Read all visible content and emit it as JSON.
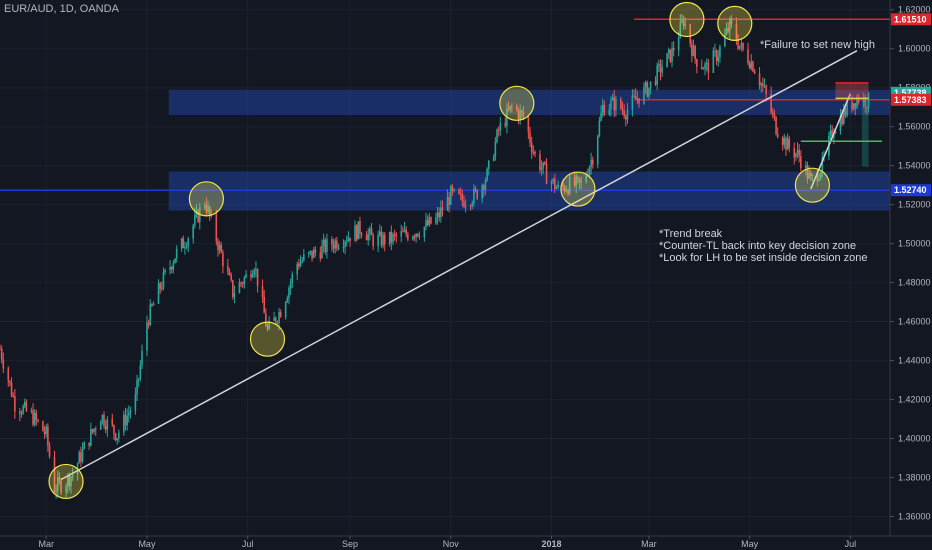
{
  "header": {
    "symbol_title": "EUR/AUD, 1D, OANDA"
  },
  "annotations": {
    "failure_note": "*Failure to set new high",
    "trend_notes": [
      "*Trend break",
      "*Counter-TL back into key decision zone",
      "*Look for LH to be set inside decision zone"
    ]
  },
  "colors": {
    "background": "#131722",
    "up_candle": "#26a69a",
    "down_candle": "#ef5350",
    "zone_fill": "#2962ff",
    "blue_line": "#1e3ad6",
    "red_line": "#e0242c",
    "trendline": "#d1d4dc",
    "highlight": "#f2e44a"
  },
  "chart_data": {
    "type": "candlestick",
    "title": "EUR/AUD, 1D, OANDA",
    "ylim": [
      1.35,
      1.625
    ],
    "y_ticks": [
      1.36,
      1.38,
      1.4,
      1.42,
      1.44,
      1.46,
      1.48,
      1.5,
      1.52,
      1.54,
      1.56,
      1.58,
      1.6,
      1.62
    ],
    "x_ticks": [
      "Mar",
      "May",
      "Jul",
      "Sep",
      "Nov",
      "2018",
      "Mar",
      "May",
      "Jul"
    ],
    "x_range": [
      "2017-02-01",
      "2018-07-25"
    ],
    "x_tick_dates": [
      "2017-03-01",
      "2017-05-01",
      "2017-07-01",
      "2017-09-01",
      "2017-11-01",
      "2018-01-01",
      "2018-03-01",
      "2018-05-01",
      "2018-07-01"
    ],
    "price_path": [
      [
        "2017-02-01",
        1.446
      ],
      [
        "2017-02-10",
        1.418
      ],
      [
        "2017-02-20",
        1.412
      ],
      [
        "2017-03-01",
        1.402
      ],
      [
        "2017-03-06",
        1.375
      ],
      [
        "2017-03-13",
        1.378
      ],
      [
        "2017-03-17",
        1.382
      ],
      [
        "2017-03-24",
        1.395
      ],
      [
        "2017-04-03",
        1.412
      ],
      [
        "2017-04-13",
        1.402
      ],
      [
        "2017-04-24",
        1.42
      ],
      [
        "2017-05-01",
        1.46
      ],
      [
        "2017-05-10",
        1.48
      ],
      [
        "2017-05-18",
        1.494
      ],
      [
        "2017-05-26",
        1.504
      ],
      [
        "2017-06-05",
        1.522
      ],
      [
        "2017-06-13",
        1.5
      ],
      [
        "2017-06-22",
        1.475
      ],
      [
        "2017-06-30",
        1.483
      ],
      [
        "2017-07-05",
        1.49
      ],
      [
        "2017-07-13",
        1.455
      ],
      [
        "2017-07-21",
        1.466
      ],
      [
        "2017-07-31",
        1.49
      ],
      [
        "2017-08-10",
        1.495
      ],
      [
        "2017-08-21",
        1.5
      ],
      [
        "2017-08-31",
        1.504
      ],
      [
        "2017-09-08",
        1.508
      ],
      [
        "2017-09-15",
        1.502
      ],
      [
        "2017-09-25",
        1.502
      ],
      [
        "2017-10-05",
        1.505
      ],
      [
        "2017-10-13",
        1.507
      ],
      [
        "2017-10-23",
        1.512
      ],
      [
        "2017-11-01",
        1.525
      ],
      [
        "2017-11-08",
        1.522
      ],
      [
        "2017-11-16",
        1.525
      ],
      [
        "2017-11-23",
        1.535
      ],
      [
        "2017-11-30",
        1.558
      ],
      [
        "2017-12-08",
        1.57
      ],
      [
        "2017-12-15",
        1.565
      ],
      [
        "2017-12-22",
        1.545
      ],
      [
        "2017-12-29",
        1.535
      ],
      [
        "2018-01-05",
        1.528
      ],
      [
        "2018-01-12",
        1.53
      ],
      [
        "2018-01-19",
        1.53
      ],
      [
        "2018-01-26",
        1.545
      ],
      [
        "2018-02-01",
        1.57
      ],
      [
        "2018-02-08",
        1.572
      ],
      [
        "2018-02-15",
        1.568
      ],
      [
        "2018-02-22",
        1.575
      ],
      [
        "2018-03-01",
        1.58
      ],
      [
        "2018-03-08",
        1.59
      ],
      [
        "2018-03-15",
        1.598
      ],
      [
        "2018-03-22",
        1.615
      ],
      [
        "2018-03-29",
        1.595
      ],
      [
        "2018-04-05",
        1.59
      ],
      [
        "2018-04-12",
        1.598
      ],
      [
        "2018-04-19",
        1.612
      ],
      [
        "2018-04-26",
        1.6
      ],
      [
        "2018-05-03",
        1.592
      ],
      [
        "2018-05-10",
        1.578
      ],
      [
        "2018-05-17",
        1.56
      ],
      [
        "2018-05-24",
        1.55
      ],
      [
        "2018-05-31",
        1.545
      ],
      [
        "2018-06-07",
        1.532
      ],
      [
        "2018-06-14",
        1.54
      ],
      [
        "2018-06-21",
        1.56
      ],
      [
        "2018-06-28",
        1.568
      ],
      [
        "2018-07-05",
        1.575
      ],
      [
        "2018-07-12",
        1.573
      ]
    ],
    "zones": [
      {
        "from": 1.517,
        "to": 1.537
      },
      {
        "from": 1.566,
        "to": 1.579
      }
    ],
    "horizontal_lines": [
      {
        "value": 1.6151,
        "label": "1.61510",
        "color": "#e0242c"
      },
      {
        "value": 1.5738,
        "label": "1.57383",
        "color": "#e0242c"
      },
      {
        "value": 1.5274,
        "label": "1.52740",
        "color": "#1e3ad6"
      }
    ],
    "current_price_label": "1.57738",
    "trendline": {
      "start": [
        "2017-03-10",
        1.379
      ],
      "end": [
        "2018-07-05",
        1.599
      ]
    },
    "counter_trendline": {
      "start": [
        "2018-06-07",
        1.528
      ],
      "end": [
        "2018-07-01",
        1.577
      ]
    },
    "highlight_circles": [
      [
        "2017-03-13",
        1.378
      ],
      [
        "2017-06-06",
        1.523
      ],
      [
        "2017-07-13",
        1.451
      ],
      [
        "2017-12-11",
        1.572
      ],
      [
        "2018-01-17",
        1.528
      ],
      [
        "2018-03-24",
        1.615
      ],
      [
        "2018-04-22",
        1.613
      ],
      [
        "2018-06-08",
        1.53
      ]
    ],
    "trade_box": {
      "x_start": "2018-06-22",
      "x_end": "2018-07-12",
      "x_narrow_start": "2018-07-08",
      "stop": 1.5825,
      "entry": 1.5745,
      "target": 1.5395,
      "mid_green": 1.5525,
      "mid_green_start": "2018-06-01"
    }
  }
}
